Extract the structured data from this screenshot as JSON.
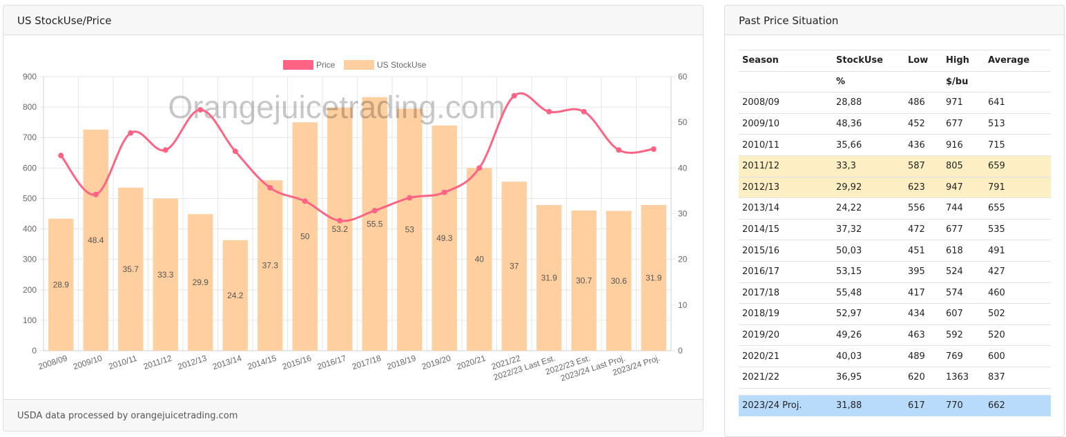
{
  "left_card": {
    "title": "US StockUse/Price",
    "footer": "USDA data processed by orangejuicetrading.com",
    "watermark": "Orangejuicetrading.com"
  },
  "right_card": {
    "title": "Past Price Situation",
    "headers": [
      "Season",
      "StockUse",
      "Low",
      "High",
      "Average"
    ],
    "units": [
      "",
      "%",
      "",
      "$/bu",
      ""
    ],
    "rows": [
      {
        "season": "2008/09",
        "stockuse": "28,88",
        "low": "486",
        "high": "971",
        "average": "641",
        "highlight": ""
      },
      {
        "season": "2009/10",
        "stockuse": "48,36",
        "low": "452",
        "high": "677",
        "average": "513",
        "highlight": ""
      },
      {
        "season": "2010/11",
        "stockuse": "35,66",
        "low": "436",
        "high": "916",
        "average": "715",
        "highlight": ""
      },
      {
        "season": "2011/12",
        "stockuse": "33,3",
        "low": "587",
        "high": "805",
        "average": "659",
        "highlight": "yellow"
      },
      {
        "season": "2012/13",
        "stockuse": "29,92",
        "low": "623",
        "high": "947",
        "average": "791",
        "highlight": "yellow"
      },
      {
        "season": "2013/14",
        "stockuse": "24,22",
        "low": "556",
        "high": "744",
        "average": "655",
        "highlight": ""
      },
      {
        "season": "2014/15",
        "stockuse": "37,32",
        "low": "472",
        "high": "677",
        "average": "535",
        "highlight": ""
      },
      {
        "season": "2015/16",
        "stockuse": "50,03",
        "low": "451",
        "high": "618",
        "average": "491",
        "highlight": ""
      },
      {
        "season": "2016/17",
        "stockuse": "53,15",
        "low": "395",
        "high": "524",
        "average": "427",
        "highlight": ""
      },
      {
        "season": "2017/18",
        "stockuse": "55,48",
        "low": "417",
        "high": "574",
        "average": "460",
        "highlight": ""
      },
      {
        "season": "2018/19",
        "stockuse": "52,97",
        "low": "434",
        "high": "607",
        "average": "502",
        "highlight": ""
      },
      {
        "season": "2019/20",
        "stockuse": "49,26",
        "low": "463",
        "high": "592",
        "average": "520",
        "highlight": ""
      },
      {
        "season": "2020/21",
        "stockuse": "40,03",
        "low": "489",
        "high": "769",
        "average": "600",
        "highlight": ""
      },
      {
        "season": "2021/22",
        "stockuse": "36,95",
        "low": "620",
        "high": "1363",
        "average": "837",
        "highlight": ""
      }
    ],
    "final_row": {
      "season": "2023/24 Proj.",
      "stockuse": "31,88",
      "low": "617",
      "high": "770",
      "average": "662",
      "highlight": "blue"
    }
  },
  "chart_data": {
    "type": "bar",
    "categories": [
      "2008/09",
      "2009/10",
      "2010/11",
      "2011/12",
      "2012/13",
      "2013/14",
      "2014/15",
      "2015/16",
      "2016/17",
      "2017/18",
      "2018/19",
      "2019/20",
      "2020/21",
      "2021/22",
      "2022/23 Last Est.",
      "2022/23 Est.",
      "2023/24 Last Proj.",
      "2023/24 Proj."
    ],
    "series": [
      {
        "name": "Price",
        "kind": "line",
        "axis": "left",
        "color": "#ff6384",
        "values": [
          641,
          513,
          715,
          659,
          791,
          655,
          535,
          491,
          427,
          460,
          502,
          520,
          600,
          837,
          785,
          785,
          659,
          662
        ]
      },
      {
        "name": "US StockUse",
        "kind": "bar",
        "axis": "right",
        "color": "#ffcf9f",
        "values": [
          28.9,
          48.4,
          35.7,
          33.3,
          29.9,
          24.2,
          37.3,
          50,
          53.2,
          55.5,
          53,
          49.3,
          40,
          37,
          31.9,
          30.7,
          30.6,
          31.9
        ],
        "labels": [
          "28.9",
          "48.4",
          "35.7",
          "33.3",
          "29.9",
          "24.2",
          "37.3",
          "50",
          "53.2",
          "55.5",
          "53",
          "49.3",
          "40",
          "37",
          "31.9",
          "30.7",
          "30.6",
          "31.9"
        ]
      }
    ],
    "y_left": {
      "min": 0,
      "max": 900,
      "ticks": [
        "0",
        "100",
        "200",
        "300",
        "400",
        "500",
        "600",
        "700",
        "800",
        "900"
      ]
    },
    "y_right": {
      "min": 0,
      "max": 60,
      "ticks": [
        "0",
        "10",
        "20",
        "30",
        "40",
        "50",
        "60"
      ]
    },
    "grid": true,
    "legend_position": "top-center"
  }
}
